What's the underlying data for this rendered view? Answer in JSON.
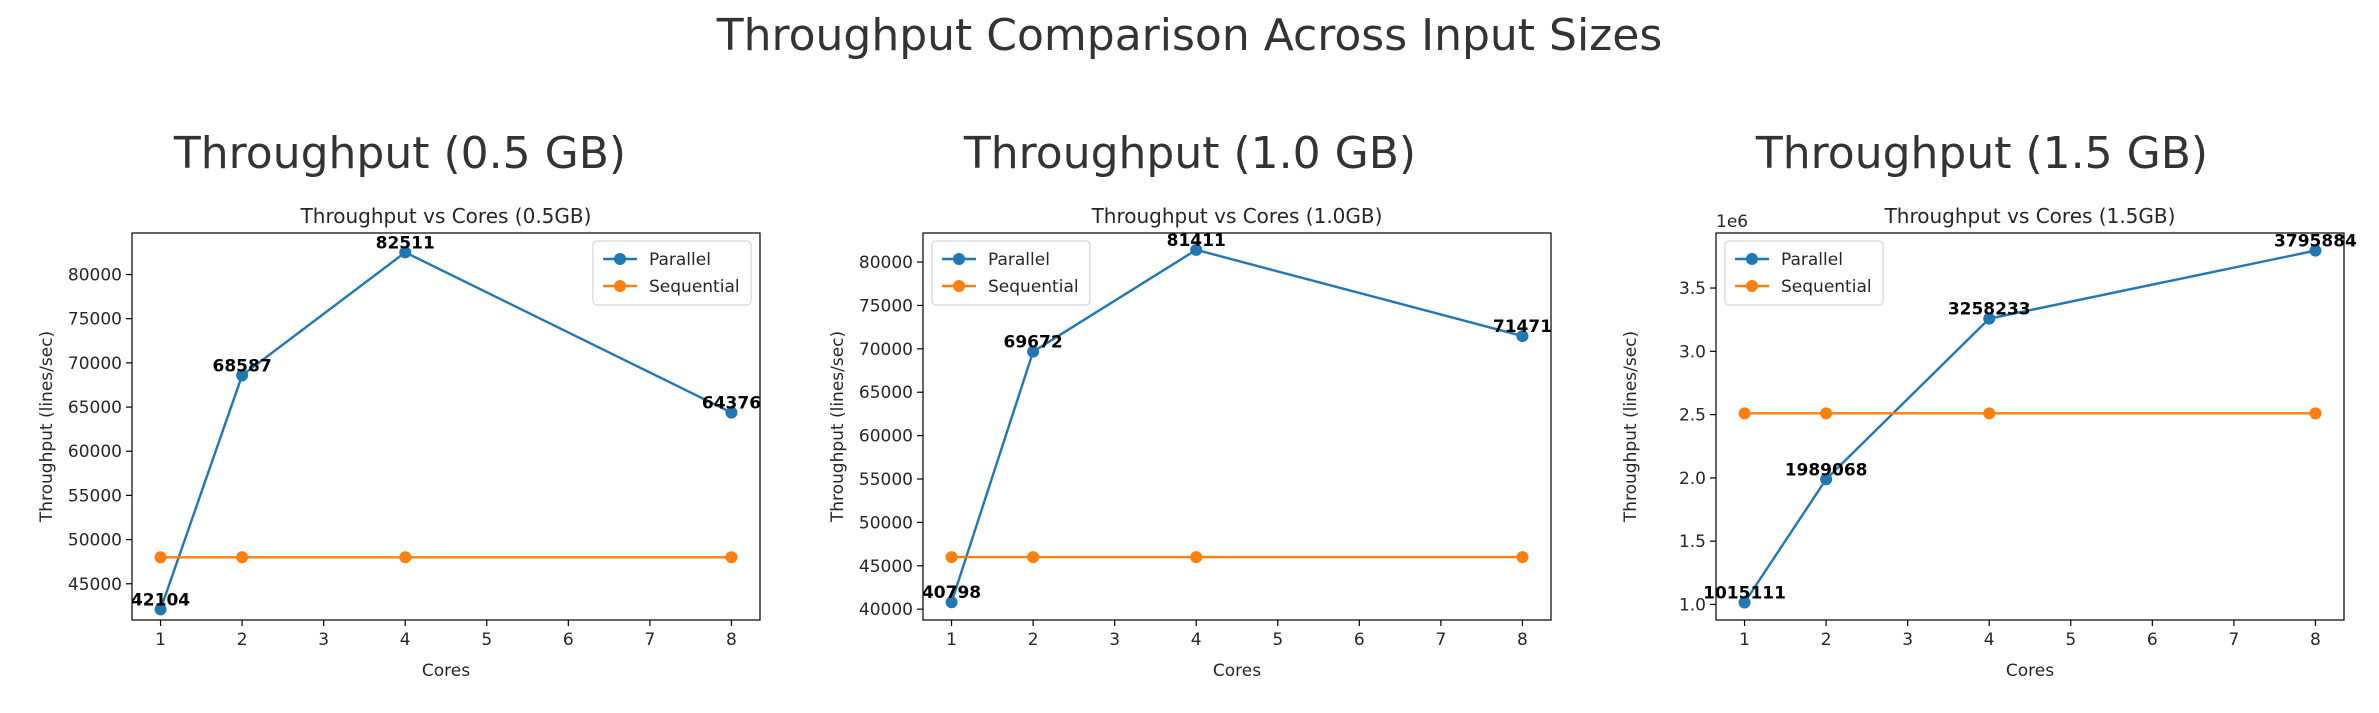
{
  "figure_title": "Throughput Comparison Across Input Sizes",
  "colors": {
    "parallel": "#1f77b4",
    "sequential": "#ff7f0e"
  },
  "chart_data": [
    {
      "type": "line",
      "heading": "Throughput (0.5 GB)",
      "title": "Throughput vs Cores (0.5GB)",
      "xlabel": "Cores",
      "ylabel": "Throughput (lines/sec)",
      "x": [
        1,
        2,
        4,
        8
      ],
      "xlim": [
        0.65,
        8.35
      ],
      "xticks": [
        1,
        2,
        3,
        4,
        5,
        6,
        7,
        8
      ],
      "ylim": [
        40900,
        84700
      ],
      "yticks": [
        45000,
        50000,
        55000,
        60000,
        65000,
        70000,
        75000,
        80000
      ],
      "ytick_labels": [
        "45000",
        "50000",
        "55000",
        "60000",
        "65000",
        "70000",
        "75000",
        "80000"
      ],
      "scale_label": "",
      "legend_position": "upper right",
      "grid": false,
      "series": [
        {
          "name": "Parallel",
          "values": [
            42104,
            68587,
            82511,
            64376
          ],
          "labels": [
            "42104",
            "68587",
            "82511",
            "64376"
          ]
        },
        {
          "name": "Sequential",
          "values": [
            48000,
            48000,
            48000,
            48000
          ]
        }
      ]
    },
    {
      "type": "line",
      "heading": "Throughput (1.0 GB)",
      "title": "Throughput vs Cores (1.0GB)",
      "xlabel": "Cores",
      "ylabel": "Throughput (lines/sec)",
      "x": [
        1,
        2,
        4,
        8
      ],
      "xlim": [
        0.65,
        8.35
      ],
      "xticks": [
        1,
        2,
        3,
        4,
        5,
        6,
        7,
        8
      ],
      "ylim": [
        38750,
        83350
      ],
      "yticks": [
        40000,
        45000,
        50000,
        55000,
        60000,
        65000,
        70000,
        75000,
        80000
      ],
      "ytick_labels": [
        "40000",
        "45000",
        "50000",
        "55000",
        "60000",
        "65000",
        "70000",
        "75000",
        "80000"
      ],
      "scale_label": "",
      "legend_position": "upper left",
      "grid": false,
      "series": [
        {
          "name": "Parallel",
          "values": [
            40798,
            69672,
            81411,
            71471
          ],
          "labels": [
            "40798",
            "69672",
            "81411",
            "71471"
          ]
        },
        {
          "name": "Sequential",
          "values": [
            46000,
            46000,
            46000,
            46000
          ]
        }
      ]
    },
    {
      "type": "line",
      "heading": "Throughput (1.5 GB)",
      "title": "Throughput vs Cores (1.5GB)",
      "xlabel": "Cores",
      "ylabel": "Throughput (lines/sec)",
      "x": [
        1,
        2,
        4,
        8
      ],
      "xlim": [
        0.65,
        8.35
      ],
      "xticks": [
        1,
        2,
        3,
        4,
        5,
        6,
        7,
        8
      ],
      "ylim": [
        877000,
        3935000
      ],
      "yticks": [
        1000000,
        1500000,
        2000000,
        2500000,
        3000000,
        3500000
      ],
      "ytick_labels": [
        "1.0",
        "1.5",
        "2.0",
        "2.5",
        "3.0",
        "3.5"
      ],
      "scale_label": "1e6",
      "legend_position": "upper left",
      "grid": false,
      "series": [
        {
          "name": "Parallel",
          "values": [
            1015111,
            1989068,
            3258233,
            3795884
          ],
          "labels": [
            "1015111",
            "1989068",
            "3258233",
            "3795884"
          ]
        },
        {
          "name": "Sequential",
          "values": [
            2510000,
            2510000,
            2510000,
            2510000
          ]
        }
      ]
    }
  ]
}
